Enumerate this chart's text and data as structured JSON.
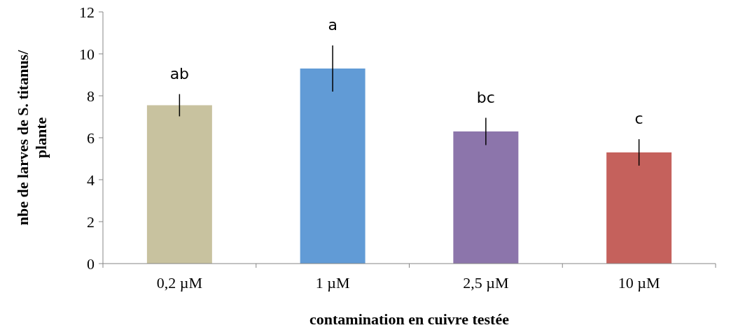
{
  "chart_data": {
    "type": "bar",
    "xlabel": "contamination en cuivre testée",
    "ylabel": "nbe de larves de S. titanus/ plante",
    "categories": [
      "0,2 µM",
      "1 µM",
      "2,5 µM",
      "10 µM"
    ],
    "values": [
      7.55,
      9.3,
      6.3,
      5.3
    ],
    "colors": [
      "#c8c29f",
      "#619bd6",
      "#8c75ab",
      "#c5615c"
    ],
    "errors": [
      0.53,
      1.1,
      0.65,
      0.63
    ],
    "ylim": [
      0,
      12
    ],
    "yticks": [
      0,
      2,
      4,
      6,
      8,
      10,
      12
    ],
    "grid": false,
    "annotations": [
      "ab",
      "a",
      "bc",
      "c"
    ]
  }
}
